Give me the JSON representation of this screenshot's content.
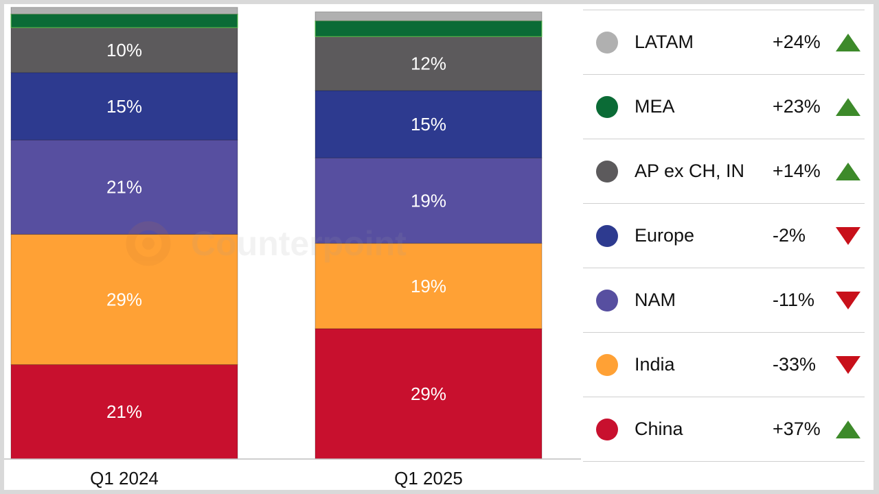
{
  "chart_data": {
    "type": "bar",
    "stacked": true,
    "categories": [
      "Q1 2024",
      "Q1 2025"
    ],
    "series": [
      {
        "name": "China",
        "color": "#c8102e",
        "values": [
          21,
          29
        ],
        "labels": [
          "21%",
          "29%"
        ]
      },
      {
        "name": "India",
        "color": "#ffa135",
        "values": [
          29,
          19
        ],
        "labels": [
          "29%",
          "19%"
        ]
      },
      {
        "name": "NAM",
        "color": "#574fa0",
        "values": [
          21,
          19
        ],
        "labels": [
          "21%",
          "19%"
        ]
      },
      {
        "name": "Europe",
        "color": "#2d3a8f",
        "values": [
          15,
          15
        ],
        "labels": [
          "15%",
          "15%"
        ]
      },
      {
        "name": "AP ex CH, IN",
        "color": "#5c5a5c",
        "values": [
          10,
          12
        ],
        "labels": [
          "10%",
          "12%"
        ]
      },
      {
        "name": "MEA",
        "color": "#0b6b36",
        "values": [
          3,
          3.5
        ],
        "labels": [
          "",
          ""
        ]
      },
      {
        "name": "LATAM",
        "color": "#b0b0b0",
        "values": [
          1.5,
          2
        ],
        "labels": [
          "",
          ""
        ]
      }
    ],
    "ylim": [
      0,
      100
    ],
    "grid": false,
    "legend_placement": "right"
  },
  "legend": [
    {
      "name": "LATAM",
      "change": "+24%",
      "direction": "up",
      "color": "#b0b0b0"
    },
    {
      "name": "MEA",
      "change": "+23%",
      "direction": "up",
      "color": "#0b6b36"
    },
    {
      "name": "AP ex CH, IN",
      "change": "+14%",
      "direction": "up",
      "color": "#5c5a5c"
    },
    {
      "name": "Europe",
      "change": "-2%",
      "direction": "down",
      "color": "#2d3a8f"
    },
    {
      "name": "NAM",
      "change": "-11%",
      "direction": "down",
      "color": "#574fa0"
    },
    {
      "name": "India",
      "change": "-33%",
      "direction": "down",
      "color": "#ffa135"
    },
    {
      "name": "China",
      "change": "+37%",
      "direction": "up",
      "color": "#c8102e"
    }
  ],
  "arrow_colors": {
    "up": "#3d8a2a",
    "down": "#c8101a"
  },
  "watermark": "Counterpoint"
}
